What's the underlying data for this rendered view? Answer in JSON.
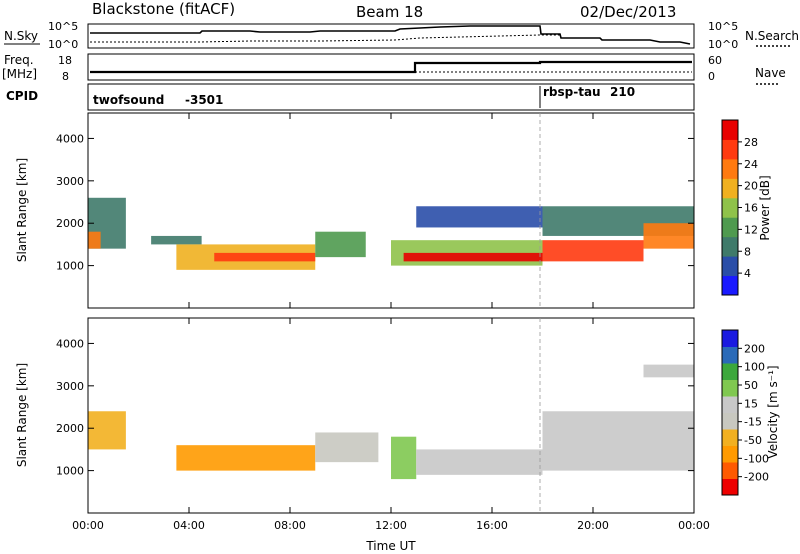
{
  "header": {
    "station": "Blackstone (fitACF)",
    "beam": "Beam 18",
    "date": "02/Dec/2013"
  },
  "top_panels": {
    "nsky_label": "N.Sky",
    "nsearch_label": "N.Search",
    "nsky_ticks": [
      "10^5",
      "10^0"
    ],
    "nsearch_ticks": [
      "10^5",
      "10^0"
    ],
    "freq_label_1": "Freq.",
    "freq_label_2": "[MHz]",
    "freq_ticks": [
      "18",
      "8"
    ],
    "nave_label": "Nave",
    "nave_ticks": [
      "60",
      "0"
    ],
    "cpid_label": "CPID",
    "cpid_entries": [
      {
        "name": "twofsound",
        "id": "-3501"
      },
      {
        "name": "rbsp-tau",
        "id": "210"
      }
    ]
  },
  "colors": {
    "power": [
      "#1a1aff",
      "#2a4ea8",
      "#3f7a6a",
      "#4f9a4f",
      "#8fc24a",
      "#f0b020",
      "#ff7a10",
      "#ff3a10",
      "#e80000"
    ],
    "velocity": [
      "#ee0000",
      "#ff5a00",
      "#ff9a00",
      "#f2b020",
      "#c8c8c0",
      "#c8c8c8",
      "#80c850",
      "#3ca83c",
      "#2a6ab8",
      "#1a1ae0"
    ]
  },
  "chart_data": [
    {
      "type": "heatmap",
      "title": "Power",
      "xlabel": "",
      "ylabel": "Slant Range [km]",
      "xlim": [
        "00:00",
        "24:00"
      ],
      "ylim": [
        0,
        4600
      ],
      "xticks": [
        "00:00",
        "04:00",
        "08:00",
        "12:00",
        "16:00",
        "20:00",
        "00:00"
      ],
      "yticks": [
        1000,
        2000,
        3000,
        4000
      ],
      "colorbar_label": "Power [dB]",
      "colorbar_ticks": [
        "28",
        "24",
        "20",
        "16",
        "12",
        "8",
        "4"
      ],
      "colorbar_range": [
        0,
        32
      ],
      "bands": [
        {
          "t0": 0.0,
          "t1": 1.5,
          "r0": 1400,
          "r1": 2600,
          "level": 2
        },
        {
          "t0": 0.0,
          "t1": 0.5,
          "r0": 1400,
          "r1": 1800,
          "level": 6
        },
        {
          "t0": 2.5,
          "t1": 4.5,
          "r0": 1500,
          "r1": 1700,
          "level": 2
        },
        {
          "t0": 3.5,
          "t1": 9.0,
          "r0": 900,
          "r1": 1500,
          "level": 5
        },
        {
          "t0": 5.0,
          "t1": 9.0,
          "r0": 1100,
          "r1": 1300,
          "level": 7
        },
        {
          "t0": 9.0,
          "t1": 11.0,
          "r0": 1200,
          "r1": 1800,
          "level": 3
        },
        {
          "t0": 12.0,
          "t1": 18.0,
          "r0": 1000,
          "r1": 1600,
          "level": 4
        },
        {
          "t0": 12.5,
          "t1": 18.0,
          "r0": 1100,
          "r1": 1300,
          "level": 8
        },
        {
          "t0": 13.0,
          "t1": 18.0,
          "r0": 1900,
          "r1": 2400,
          "level": 1
        },
        {
          "t0": 18.0,
          "t1": 22.0,
          "r0": 1100,
          "r1": 1600,
          "level": 7
        },
        {
          "t0": 18.0,
          "t1": 24.0,
          "r0": 1700,
          "r1": 2400,
          "level": 2
        },
        {
          "t0": 22.0,
          "t1": 24.0,
          "r0": 1400,
          "r1": 2000,
          "level": 6
        }
      ]
    },
    {
      "type": "heatmap",
      "title": "Velocity",
      "xlabel": "Time UT",
      "ylabel": "Slant Range [km]",
      "xlim": [
        "00:00",
        "24:00"
      ],
      "ylim": [
        0,
        4600
      ],
      "xticks": [
        "00:00",
        "04:00",
        "08:00",
        "12:00",
        "16:00",
        "20:00",
        "00:00"
      ],
      "yticks": [
        1000,
        2000,
        3000,
        4000
      ],
      "colorbar_label": "Velocity [m s⁻¹]",
      "colorbar_ticks": [
        "200",
        "100",
        "50",
        "15",
        "-15",
        "-50",
        "-100",
        "-200"
      ],
      "colorbar_range": [
        -250,
        250
      ],
      "bands": [
        {
          "t0": 0.0,
          "t1": 1.5,
          "r0": 1500,
          "r1": 2400,
          "level": 3
        },
        {
          "t0": 3.5,
          "t1": 9.0,
          "r0": 1000,
          "r1": 1600,
          "level": 2
        },
        {
          "t0": 9.0,
          "t1": 11.5,
          "r0": 1200,
          "r1": 1900,
          "level": 4
        },
        {
          "t0": 12.0,
          "t1": 13.0,
          "r0": 800,
          "r1": 1800,
          "level": 6
        },
        {
          "t0": 13.0,
          "t1": 18.0,
          "r0": 900,
          "r1": 1500,
          "level": 5
        },
        {
          "t0": 18.0,
          "t1": 24.0,
          "r0": 1000,
          "r1": 2400,
          "level": 5
        },
        {
          "t0": 22.0,
          "t1": 24.0,
          "r0": 3200,
          "r1": 3500,
          "level": 5
        }
      ]
    }
  ]
}
